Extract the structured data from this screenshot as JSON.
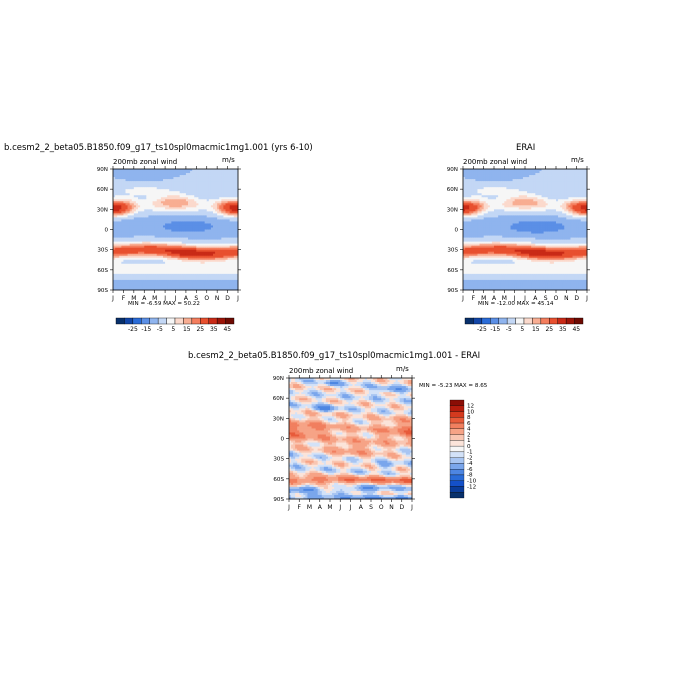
{
  "colors": {
    "top_scale": [
      "#08306b",
      "#1246a8",
      "#2a6cd8",
      "#5b8fe6",
      "#8fb4ee",
      "#c3d7f5",
      "#f6f6f6",
      "#fbd9cc",
      "#f8ad92",
      "#f47e5e",
      "#e8502f",
      "#c92a17",
      "#9c1408",
      "#6e0a02"
    ],
    "diff_scale": [
      "#08306b",
      "#0a3c9a",
      "#1450c8",
      "#2a6cd8",
      "#4d86e2",
      "#7aa6ec",
      "#a8c5f2",
      "#d3e2f8",
      "#f6f6f6",
      "#fbe4da",
      "#f9c6b2",
      "#f6a386",
      "#f17f5f",
      "#e85b3a",
      "#d43a1e",
      "#b51c0d",
      "#8a0d05"
    ]
  },
  "chart_data": [
    {
      "type": "heatmap",
      "title": "b.cesm2_2_beta05.B1850.f09_g17_ts10spl0macmic1mg1.001 (yrs 6-10)",
      "subtitle_left": "200mb zonal wind",
      "subtitle_right": "m/s",
      "x": [
        "J",
        "F",
        "M",
        "A",
        "M",
        "J",
        "J",
        "A",
        "S",
        "O",
        "N",
        "D",
        "J"
      ],
      "y_ticks": [
        "90N",
        "60N",
        "30N",
        "0",
        "30S",
        "60S",
        "90S"
      ],
      "stats": "MIN =    -6.59  MAX =    50.22",
      "colorbar_labels": [
        "-25",
        "-15",
        "-5",
        "5",
        "15",
        "25",
        "35",
        "45"
      ]
    },
    {
      "type": "heatmap",
      "title": "ERAI",
      "subtitle_left": "200mb zonal wind",
      "subtitle_right": "m/s",
      "x": [
        "J",
        "F",
        "M",
        "A",
        "M",
        "J",
        "J",
        "A",
        "S",
        "O",
        "N",
        "D",
        "J"
      ],
      "y_ticks": [
        "90N",
        "60N",
        "30N",
        "0",
        "30S",
        "60S",
        "90S"
      ],
      "stats": "MIN =  -12.00  MAX =  45.14",
      "colorbar_labels": [
        "-25",
        "-15",
        "-5",
        "5",
        "15",
        "25",
        "35",
        "45"
      ]
    },
    {
      "type": "heatmap",
      "title": "b.cesm2_2_beta05.B1850.f09_g17_ts10spl0macmic1mg1.001 - ERAI",
      "subtitle_left": "200mb zonal wind",
      "subtitle_right": "m/s",
      "x": [
        "J",
        "F",
        "M",
        "A",
        "M",
        "J",
        "J",
        "A",
        "S",
        "O",
        "N",
        "D",
        "J"
      ],
      "y_ticks": [
        "90N",
        "60N",
        "30N",
        "0",
        "30S",
        "60S",
        "90S"
      ],
      "stats": "MIN =   -5.23  MAX =    8.65",
      "colorbar_labels": [
        "12",
        "10",
        "8",
        "6",
        "4",
        "2",
        "1",
        "0",
        "-1",
        "-2",
        "-4",
        "-6",
        "-8",
        "-10",
        "-12"
      ]
    }
  ]
}
